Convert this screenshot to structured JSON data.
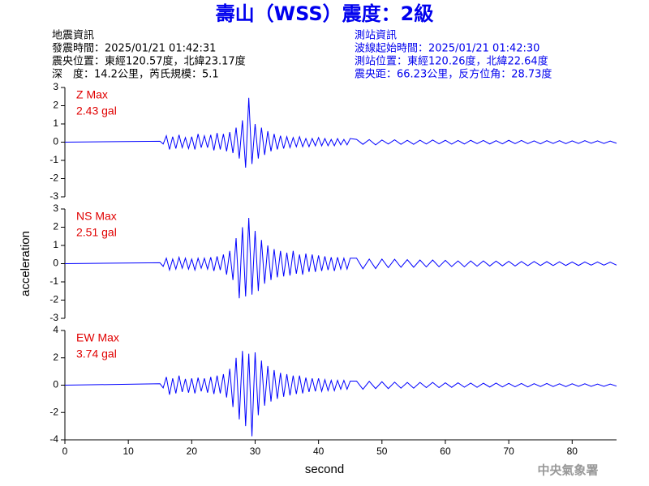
{
  "header": {
    "title": "壽山（WSS）震度：2級",
    "event_info": [
      "地震資訊",
      "發震時間：2025/01/21 01:42:31",
      "震央位置：東經120.57度，北緯23.17度",
      "深　度：14.2公里，芮氏規模：5.1"
    ],
    "station_info": [
      "測站資訊",
      "波線起始時間：2025/01/21 01:42:30",
      "測站位置：東經120.26度，北緯22.64度",
      "震央距：66.23公里，反方位角：28.73度"
    ]
  },
  "footer": "中央氣象署",
  "chart_data": [
    {
      "type": "line",
      "color": "#0000ff",
      "annotations": [
        "Z Max",
        "2.43 gal"
      ],
      "xlim": [
        0,
        87
      ],
      "ylim": [
        -3,
        3
      ],
      "yticks": [
        -3,
        -2,
        -1,
        0,
        1,
        2,
        3
      ],
      "x": [
        0,
        15,
        15.5,
        16,
        16.5,
        17,
        17.5,
        18,
        18.5,
        19,
        19.5,
        20,
        20.5,
        21,
        21.5,
        22,
        22.5,
        23,
        23.5,
        24,
        24.5,
        25,
        25.5,
        26,
        26.5,
        27,
        27.5,
        28,
        28.5,
        29,
        29.5,
        30,
        30.5,
        31,
        31.5,
        32,
        32.5,
        33,
        33.5,
        34,
        34.5,
        35,
        35.5,
        36,
        36.5,
        37,
        37.5,
        38,
        38.5,
        39,
        39.5,
        40,
        40.5,
        41,
        41.5,
        42,
        42.5,
        43,
        43.5,
        44,
        44.5,
        45,
        46,
        47,
        48,
        49,
        50,
        51,
        52,
        53,
        54,
        55,
        56,
        57,
        58,
        59,
        60,
        61,
        62,
        63,
        64,
        65,
        66,
        67,
        68,
        69,
        70,
        71,
        72,
        73,
        74,
        75,
        76,
        77,
        78,
        79,
        80,
        81,
        82,
        83,
        84,
        85,
        86,
        87
      ],
      "values": [
        0,
        0.05,
        -0.1,
        0.35,
        -0.4,
        0.3,
        -0.35,
        0.4,
        -0.3,
        0.25,
        -0.35,
        0.3,
        -0.4,
        0.45,
        -0.3,
        0.35,
        -0.3,
        0.4,
        -0.45,
        0.5,
        -0.4,
        0.45,
        -0.5,
        0.55,
        -0.6,
        0.8,
        -0.9,
        1.2,
        -1.4,
        2.43,
        -1.2,
        1.0,
        -0.9,
        0.8,
        -0.7,
        0.6,
        -0.5,
        0.45,
        -0.4,
        0.35,
        -0.35,
        0.3,
        -0.3,
        0.25,
        -0.25,
        0.3,
        -0.25,
        0.2,
        -0.25,
        0.2,
        -0.2,
        0.25,
        -0.2,
        0.2,
        -0.2,
        0.15,
        -0.2,
        0.2,
        -0.15,
        0.15,
        -0.15,
        0.2,
        0.15,
        -0.12,
        0.14,
        -0.15,
        0.12,
        -0.1,
        0.13,
        -0.12,
        0.1,
        -0.12,
        0.11,
        -0.1,
        0.12,
        -0.09,
        0.1,
        -0.11,
        0.09,
        -0.1,
        0.1,
        -0.08,
        0.09,
        -0.1,
        0.08,
        -0.09,
        0.1,
        -0.08,
        0.09,
        -0.08,
        0.07,
        -0.09,
        0.08,
        -0.07,
        0.08,
        -0.08,
        0.07,
        -0.07,
        0.08,
        -0.06,
        0.07,
        -0.07,
        0.06,
        -0.06
      ]
    },
    {
      "type": "line",
      "color": "#0000ff",
      "annotations": [
        "NS Max",
        "2.51 gal"
      ],
      "ylabel": "acceleration",
      "xlim": [
        0,
        87
      ],
      "ylim": [
        -3,
        3
      ],
      "yticks": [
        -3,
        -2,
        -1,
        0,
        1,
        2,
        3
      ],
      "x": [
        0,
        15,
        15.5,
        16,
        16.5,
        17,
        17.5,
        18,
        18.5,
        19,
        19.5,
        20,
        20.5,
        21,
        21.5,
        22,
        22.5,
        23,
        23.5,
        24,
        24.5,
        25,
        25.5,
        26,
        26.5,
        27,
        27.5,
        28,
        28.5,
        29,
        29.5,
        30,
        30.5,
        31,
        31.5,
        32,
        32.5,
        33,
        33.5,
        34,
        34.5,
        35,
        35.5,
        36,
        36.5,
        37,
        37.5,
        38,
        38.5,
        39,
        39.5,
        40,
        40.5,
        41,
        41.5,
        42,
        42.5,
        43,
        43.5,
        44,
        44.5,
        45,
        46,
        47,
        48,
        49,
        50,
        51,
        52,
        53,
        54,
        55,
        56,
        57,
        58,
        59,
        60,
        61,
        62,
        63,
        64,
        65,
        66,
        67,
        68,
        69,
        70,
        71,
        72,
        73,
        74,
        75,
        76,
        77,
        78,
        79,
        80,
        81,
        82,
        83,
        84,
        85,
        86,
        87
      ],
      "values": [
        0,
        0.05,
        -0.15,
        0.3,
        -0.35,
        0.25,
        -0.3,
        0.35,
        -0.25,
        0.3,
        -0.3,
        0.25,
        -0.35,
        0.3,
        -0.25,
        0.3,
        -0.3,
        0.35,
        -0.4,
        0.4,
        -0.35,
        0.5,
        -0.6,
        0.7,
        -0.9,
        1.4,
        -1.9,
        2.0,
        -1.8,
        2.51,
        -1.7,
        1.8,
        -1.5,
        1.3,
        -1.1,
        1.0,
        -0.9,
        0.8,
        -0.75,
        0.7,
        -0.7,
        0.6,
        -0.65,
        0.7,
        -0.55,
        0.5,
        -0.6,
        0.55,
        -0.45,
        0.5,
        -0.45,
        0.45,
        -0.4,
        0.4,
        -0.35,
        0.35,
        -0.4,
        0.35,
        -0.3,
        0.3,
        -0.3,
        0.3,
        0.3,
        -0.28,
        0.25,
        -0.27,
        0.25,
        -0.22,
        0.24,
        -0.2,
        0.22,
        -0.2,
        0.2,
        -0.18,
        0.2,
        -0.17,
        0.18,
        -0.16,
        0.15,
        -0.17,
        0.15,
        -0.14,
        0.15,
        -0.13,
        0.14,
        -0.12,
        0.13,
        -0.13,
        0.12,
        -0.11,
        0.12,
        -0.1,
        0.11,
        -0.1,
        0.1,
        -0.1,
        0.09,
        -0.1,
        0.09,
        -0.08,
        0.09,
        -0.08,
        0.08,
        -0.08
      ]
    },
    {
      "type": "line",
      "color": "#0000ff",
      "annotations": [
        "EW Max",
        "3.74 gal"
      ],
      "xlabel": "second",
      "xlim": [
        0,
        87
      ],
      "xticks": [
        0,
        10,
        20,
        30,
        40,
        50,
        60,
        70,
        80
      ],
      "ylim": [
        -4,
        4
      ],
      "yticks": [
        -4,
        -2,
        0,
        2,
        4
      ],
      "x": [
        0,
        15,
        15.5,
        16,
        16.5,
        17,
        17.5,
        18,
        18.5,
        19,
        19.5,
        20,
        20.5,
        21,
        21.5,
        22,
        22.5,
        23,
        23.5,
        24,
        24.5,
        25,
        25.5,
        26,
        26.5,
        27,
        27.5,
        28,
        28.5,
        29,
        29.5,
        30,
        30.5,
        31,
        31.5,
        32,
        32.5,
        33,
        33.5,
        34,
        34.5,
        35,
        35.5,
        36,
        36.5,
        37,
        37.5,
        38,
        38.5,
        39,
        39.5,
        40,
        40.5,
        41,
        41.5,
        42,
        42.5,
        43,
        43.5,
        44,
        44.5,
        45,
        46,
        47,
        48,
        49,
        50,
        51,
        52,
        53,
        54,
        55,
        56,
        57,
        58,
        59,
        60,
        61,
        62,
        63,
        64,
        65,
        66,
        67,
        68,
        69,
        70,
        71,
        72,
        73,
        74,
        75,
        76,
        77,
        78,
        79,
        80,
        81,
        82,
        83,
        84,
        85,
        86,
        87
      ],
      "values": [
        0,
        0.1,
        -0.2,
        0.6,
        -0.7,
        0.5,
        -0.6,
        0.7,
        -0.5,
        0.45,
        -0.55,
        0.5,
        -0.6,
        0.55,
        -0.45,
        0.5,
        -0.55,
        0.6,
        -0.65,
        0.7,
        -0.6,
        0.8,
        -0.9,
        1.2,
        -1.6,
        2.0,
        -2.5,
        2.5,
        -3.0,
        2.3,
        -3.74,
        2.4,
        -2.2,
        1.8,
        -1.5,
        1.4,
        -1.2,
        1.1,
        -1.0,
        0.9,
        -0.85,
        0.8,
        -0.75,
        0.7,
        -0.65,
        0.7,
        -0.6,
        0.55,
        -0.5,
        0.5,
        -0.45,
        0.5,
        -0.45,
        0.4,
        -0.4,
        0.35,
        -0.4,
        0.35,
        -0.3,
        0.35,
        -0.3,
        0.3,
        0.3,
        -0.3,
        0.28,
        -0.25,
        0.25,
        -0.25,
        0.22,
        -0.22,
        0.2,
        -0.22,
        0.2,
        -0.18,
        0.2,
        -0.18,
        0.17,
        -0.16,
        0.17,
        -0.15,
        0.15,
        -0.16,
        0.14,
        -0.14,
        0.15,
        -0.13,
        0.13,
        -0.12,
        0.12,
        -0.13,
        0.11,
        -0.1,
        0.12,
        -0.1,
        0.1,
        -0.11,
        0.1,
        -0.09,
        0.1,
        -0.09,
        0.08,
        -0.09,
        0.08,
        -0.07
      ]
    }
  ]
}
